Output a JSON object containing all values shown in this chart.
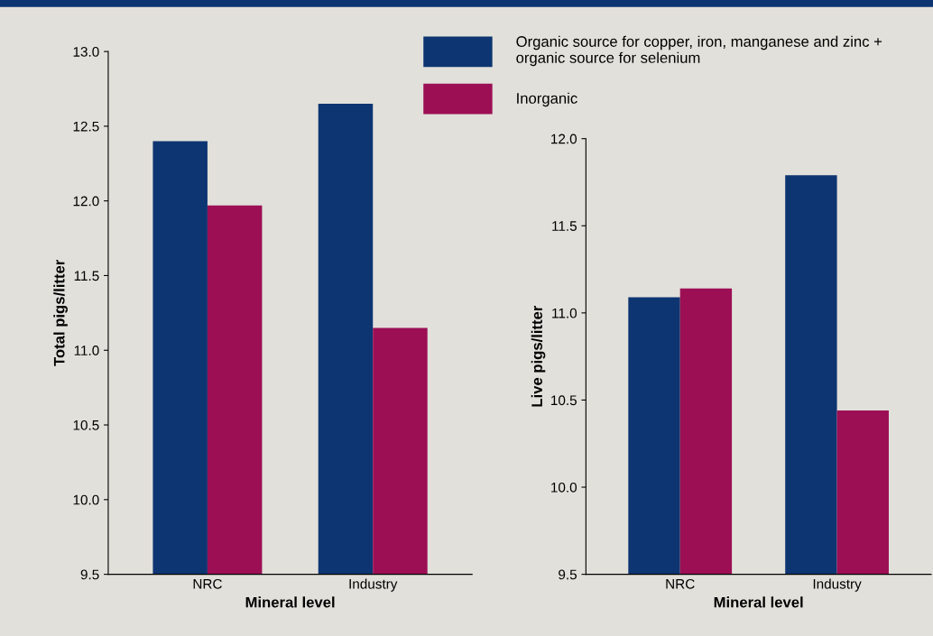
{
  "chart_data": [
    {
      "type": "bar",
      "xlabel": "Mineral level",
      "ylabel": "Total pigs/litter",
      "categories": [
        "NRC",
        "Industry"
      ],
      "series": [
        {
          "name": "Organic source for copper, iron, manganese and zinc +\norganic source for selenium",
          "color": "#0d3572",
          "values": [
            12.4,
            12.65
          ]
        },
        {
          "name": "Inorganic",
          "color": "#9c0f55",
          "values": [
            11.97,
            11.15
          ]
        }
      ],
      "ylim": [
        9.5,
        13.0
      ],
      "yticks": [
        {
          "value": 9.5,
          "label": "9.5"
        },
        {
          "value": 10,
          "label": "10.0"
        },
        {
          "value": 10.5,
          "label": "10.5"
        },
        {
          "value": 11,
          "label": "11.0"
        },
        {
          "value": 11.5,
          "label": "11.5"
        },
        {
          "value": 12,
          "label": "12.0"
        },
        {
          "value": 12.5,
          "label": "12.5"
        },
        {
          "value": 13,
          "label": "13.0"
        }
      ],
      "grid": false,
      "legend": "top right"
    },
    {
      "type": "bar",
      "xlabel": "Mineral level",
      "ylabel": "Live pigs/litter",
      "categories": [
        "NRC",
        "Industry"
      ],
      "series": [
        {
          "color": "#0d3572",
          "values": [
            11.09,
            11.79
          ]
        },
        {
          "color": "#9c0f55",
          "values": [
            11.14,
            10.44
          ]
        }
      ],
      "ylim": [
        9.5,
        12.0
      ],
      "yticks": [
        {
          "value": 9.5,
          "label": "9.5"
        },
        {
          "value": 10,
          "label": "10.0"
        },
        {
          "value": 10.5,
          "label": "10.5"
        },
        {
          "value": 11,
          "label": "11.0"
        },
        {
          "value": 11.5,
          "label": "11.5"
        },
        {
          "value": 12,
          "label": "12.0"
        }
      ],
      "grid": false
    }
  ]
}
